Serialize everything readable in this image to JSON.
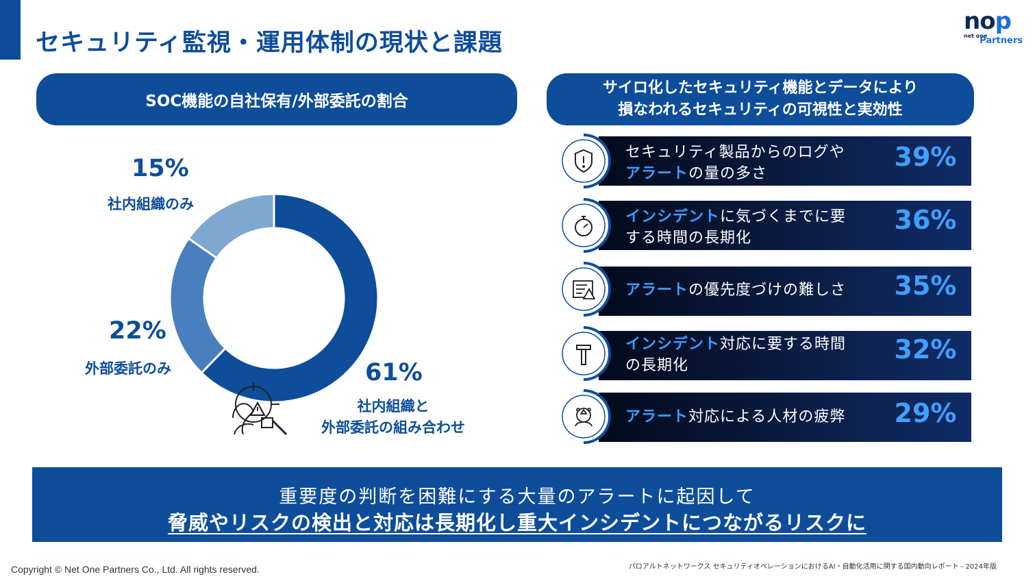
{
  "page": {
    "title": "セキュリティ監視・運用体制の現状と課題",
    "logo": {
      "mark_left": "no",
      "mark_right": "p",
      "line1": "net one",
      "line2": "Partners"
    }
  },
  "left_panel": {
    "header": "SOC機能の自社保有/外部委託の割合"
  },
  "chart_data": {
    "type": "pie",
    "variant": "donut",
    "title": "SOC機能の自社保有/外部委託の割合",
    "categories": [
      "社内組織と外部委託の組み合わせ",
      "外部委託のみ",
      "社内組織のみ"
    ],
    "values": [
      61,
      22,
      15
    ],
    "labels": [
      {
        "pct": "61%",
        "line1": "社内組織と",
        "line2": "外部委託の組み合わせ"
      },
      {
        "pct": "22%",
        "line1": "外部委託のみ",
        "line2": ""
      },
      {
        "pct": "15%",
        "line1": "社内組織のみ",
        "line2": ""
      }
    ],
    "colors": [
      "#0d4d9a",
      "#4a7fbf",
      "#7fa8d0"
    ],
    "center_icon": "security-analyst-alert-icon"
  },
  "right_panel": {
    "header_line1": "サイロ化したセキュリティ機能とデータにより",
    "header_line2": "損なわれるセキュリティの可視性と実効性",
    "items": [
      {
        "icon": "shield-alert-icon",
        "hl": "",
        "text_a": "セキュリティ製品からのログや",
        "hl2": "アラート",
        "text_b": "の量の多さ",
        "pct": "39%",
        "value": 39
      },
      {
        "icon": "stopwatch-icon",
        "hl": "インシデント",
        "text_a": "に気づくまでに要",
        "hl2": "",
        "text_b": "する時間の長期化",
        "pct": "36%",
        "value": 36
      },
      {
        "icon": "checklist-warning-icon",
        "hl": "アラート",
        "text_a": "の優先度づけの難しさ",
        "hl2": "",
        "text_b": "",
        "pct": "35%",
        "value": 35
      },
      {
        "icon": "hammer-icon",
        "hl": "インシデント",
        "text_a": "対応に要する時間",
        "hl2": "",
        "text_b": "の長期化",
        "pct": "32%",
        "value": 32
      },
      {
        "icon": "stressed-person-icon",
        "hl": "アラート",
        "text_a": "対応による人材の疲弊",
        "hl2": "",
        "text_b": "",
        "pct": "29%",
        "value": 29
      }
    ]
  },
  "banner": {
    "line1": "重要度の判断を困難にする大量のアラートに起因して",
    "line2": "脅威やリスクの検出と対応は長期化し重大インシデントにつながるリスクに"
  },
  "footer": {
    "copyright": "Copyright © Net One Partners Co., Ltd. All rights reserved.",
    "source": "パロアルトネットワークス セキュリティオペレーションにおけるAI・自動化活用に関する国内動向レポート - 2024年版"
  },
  "colors": {
    "primary": "#0d4d9a",
    "accent": "#3fa0ff"
  }
}
